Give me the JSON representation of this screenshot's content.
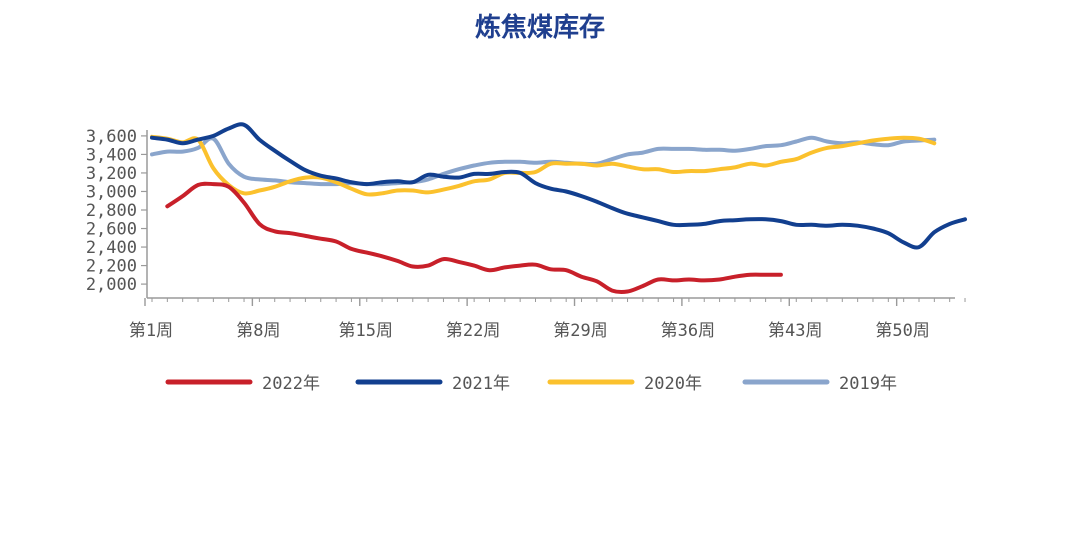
{
  "chart_data": {
    "type": "line",
    "title": "炼焦煤库存",
    "xlabel": "",
    "ylabel": "",
    "x_tick_labels": [
      "第1周",
      "第8周",
      "第15周",
      "第22周",
      "第29周",
      "第36周",
      "第43周",
      "第50周"
    ],
    "y_ticks": [
      2000,
      2200,
      2400,
      2600,
      2800,
      3000,
      3200,
      3400,
      3600
    ],
    "y_tick_labels": [
      "2,000",
      "2,200",
      "2,400",
      "2,600",
      "2,800",
      "3,000",
      "3,200",
      "3,400",
      "3,600"
    ],
    "xlim": [
      1,
      54
    ],
    "ylim": [
      1850,
      3750
    ],
    "grid": false,
    "legend_position": "bottom",
    "series": [
      {
        "name": "2022年",
        "color": "#c8202a",
        "x": [
          2,
          3,
          4,
          5,
          6,
          7,
          8,
          9,
          10,
          11,
          12,
          13,
          14,
          15,
          16,
          17,
          18,
          19,
          20,
          21,
          22,
          23,
          24,
          25,
          26,
          27,
          28,
          29,
          30,
          31,
          32,
          33,
          34,
          35,
          36,
          37,
          38,
          39,
          40,
          41,
          42
        ],
        "values": [
          2840,
          2950,
          3070,
          3080,
          3050,
          2880,
          2650,
          2570,
          2550,
          2520,
          2490,
          2460,
          2380,
          2340,
          2300,
          2250,
          2190,
          2200,
          2270,
          2240,
          2200,
          2150,
          2180,
          2200,
          2210,
          2160,
          2150,
          2080,
          2030,
          1930,
          1920,
          1980,
          2050,
          2040,
          2050,
          2040,
          2050,
          2080,
          2100,
          2100,
          2100
        ]
      },
      {
        "name": "2021年",
        "color": "#123f8f",
        "x": [
          1,
          2,
          3,
          4,
          5,
          6,
          7,
          8,
          9,
          10,
          11,
          12,
          13,
          14,
          15,
          16,
          17,
          18,
          19,
          20,
          21,
          22,
          23,
          24,
          25,
          26,
          27,
          28,
          29,
          30,
          31,
          32,
          33,
          34,
          35,
          36,
          37,
          38,
          39,
          40,
          41,
          42,
          43,
          44,
          45,
          46,
          47,
          48,
          49,
          50,
          51,
          52,
          53,
          54
        ],
        "values": [
          3580,
          3560,
          3520,
          3560,
          3600,
          3680,
          3720,
          3560,
          3440,
          3330,
          3230,
          3170,
          3140,
          3100,
          3080,
          3100,
          3110,
          3100,
          3180,
          3160,
          3150,
          3190,
          3190,
          3210,
          3200,
          3090,
          3030,
          3000,
          2950,
          2890,
          2820,
          2760,
          2720,
          2680,
          2640,
          2640,
          2650,
          2680,
          2690,
          2700,
          2700,
          2680,
          2640,
          2640,
          2630,
          2640,
          2630,
          2600,
          2550,
          2450,
          2400,
          2560,
          2650,
          2700
        ]
      },
      {
        "name": "2020年",
        "color": "#fbc12d",
        "x": [
          1,
          2,
          3,
          4,
          5,
          6,
          7,
          8,
          9,
          10,
          11,
          12,
          13,
          14,
          15,
          16,
          17,
          18,
          19,
          20,
          21,
          22,
          23,
          24,
          25,
          26,
          27,
          28,
          29,
          30,
          31,
          32,
          33,
          34,
          35,
          36,
          37,
          38,
          39,
          40,
          41,
          42,
          43,
          44,
          45,
          46,
          47,
          48,
          49,
          50,
          51,
          52
        ],
        "values": [
          3590,
          3570,
          3530,
          3560,
          3250,
          3070,
          2980,
          3010,
          3050,
          3110,
          3150,
          3150,
          3100,
          3030,
          2970,
          2980,
          3010,
          3010,
          2990,
          3020,
          3060,
          3110,
          3130,
          3200,
          3200,
          3210,
          3300,
          3300,
          3300,
          3280,
          3300,
          3270,
          3240,
          3240,
          3210,
          3220,
          3220,
          3240,
          3260,
          3300,
          3280,
          3320,
          3350,
          3420,
          3470,
          3490,
          3520,
          3550,
          3570,
          3580,
          3570,
          3520
        ]
      },
      {
        "name": "2019年",
        "color": "#8aa5cc",
        "x": [
          1,
          2,
          3,
          4,
          5,
          6,
          7,
          8,
          9,
          10,
          11,
          12,
          13,
          14,
          15,
          16,
          17,
          18,
          19,
          20,
          21,
          22,
          23,
          24,
          25,
          26,
          27,
          28,
          29,
          30,
          31,
          32,
          33,
          34,
          35,
          36,
          37,
          38,
          39,
          40,
          41,
          42,
          43,
          44,
          45,
          46,
          47,
          48,
          49,
          50,
          51,
          52
        ],
        "values": [
          3400,
          3430,
          3430,
          3470,
          3570,
          3300,
          3160,
          3130,
          3120,
          3100,
          3090,
          3080,
          3080,
          3090,
          3080,
          3080,
          3090,
          3100,
          3130,
          3190,
          3240,
          3280,
          3310,
          3320,
          3320,
          3310,
          3320,
          3310,
          3300,
          3300,
          3350,
          3400,
          3420,
          3460,
          3460,
          3460,
          3450,
          3450,
          3440,
          3460,
          3490,
          3500,
          3540,
          3580,
          3540,
          3520,
          3530,
          3510,
          3500,
          3540,
          3550,
          3560
        ]
      }
    ]
  }
}
